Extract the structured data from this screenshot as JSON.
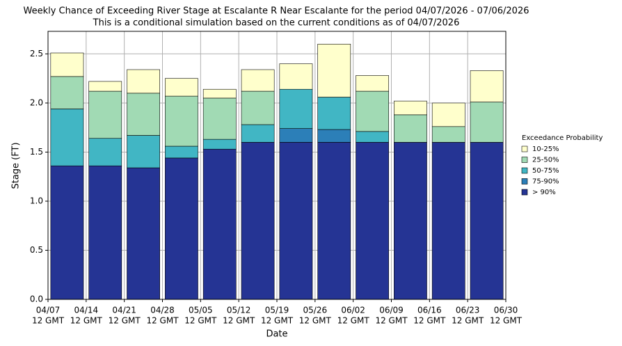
{
  "chart_data": {
    "type": "stacked_bar",
    "title": "Weekly Chance of Exceeding River Stage at Escalante R Near Escalante for the period 04/07/2026 - 07/06/2026",
    "subtitle": "This is a conditional simulation based on the current conditions as of 04/07/2026",
    "xlabel": "Date",
    "ylabel": "Stage (FT)",
    "xtick_labels": [
      "04/07",
      "04/14",
      "04/21",
      "04/28",
      "05/05",
      "05/12",
      "05/19",
      "05/26",
      "06/02",
      "06/09",
      "06/16",
      "06/23",
      "06/30"
    ],
    "xtick_sublabel": "12 GMT",
    "ylim": [
      0,
      2.73
    ],
    "yticks": [
      {
        "value": 0,
        "label": "0.0"
      },
      0.5,
      {
        "value": 1,
        "label": "1.0"
      },
      1.5,
      {
        "value": 2,
        "label": "2.0"
      },
      2.5
    ],
    "grid": true,
    "legend_title": "Exceedance Probability",
    "legend": "right",
    "series": [
      {
        "name": "> 90%",
        "color": "#253494",
        "values": [
          1.36,
          1.36,
          1.34,
          1.44,
          1.53,
          1.6,
          1.6,
          1.6,
          1.6,
          1.6,
          1.6,
          1.6
        ]
      },
      {
        "name": "75-90%",
        "color": "#2c7fb8",
        "values": [
          0,
          0,
          0,
          0,
          0,
          0,
          0.14,
          0.13,
          0,
          0,
          0,
          0
        ]
      },
      {
        "name": "50-75%",
        "color": "#41b6c4",
        "values": [
          0.58,
          0.28,
          0.33,
          0.12,
          0.1,
          0.18,
          0.4,
          0.33,
          0.11,
          0,
          0,
          0
        ]
      },
      {
        "name": "25-50%",
        "color": "#a1dab4",
        "values": [
          0.33,
          0.48,
          0.43,
          0.51,
          0.42,
          0.34,
          0,
          0,
          0.41,
          0.28,
          0.16,
          0.41
        ]
      },
      {
        "name": "10-25%",
        "color": "#ffffcc",
        "values": [
          0.24,
          0.1,
          0.24,
          0.18,
          0.09,
          0.22,
          0.26,
          0.54,
          0.16,
          0.14,
          0.24,
          0.32
        ]
      }
    ]
  }
}
